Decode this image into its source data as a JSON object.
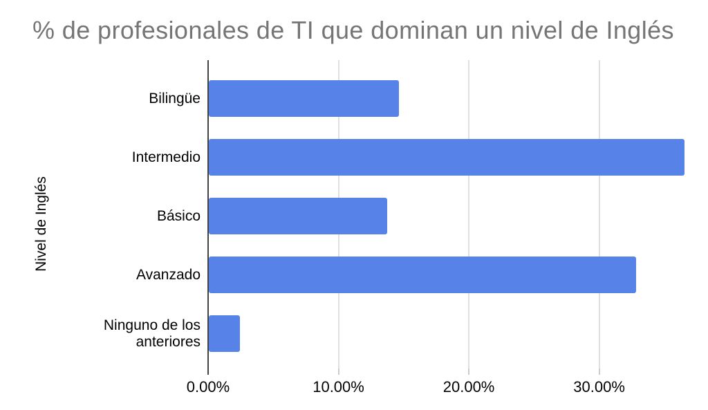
{
  "chart_data": {
    "type": "bar",
    "orientation": "horizontal",
    "title": "% de profesionales de TI que dominan un nivel de Inglés",
    "xlabel": "",
    "ylabel": "Nivel de Inglés",
    "categories": [
      "Bilingüe",
      "Intermedio",
      "Básico",
      "Avanzado",
      "Ninguno de los anteriores"
    ],
    "values": [
      14.6,
      36.5,
      13.7,
      32.8,
      2.4
    ],
    "value_unit": "%",
    "xlim": [
      0,
      37.5
    ],
    "x_ticks": [
      0,
      10,
      20,
      30
    ],
    "x_tick_labels": [
      "0.00%",
      "10.00%",
      "20.00%",
      "30.00%"
    ],
    "grid": true,
    "legend": "none",
    "colors": {
      "bar": "#5783e8",
      "title_text": "#757575",
      "axis_text": "#000000",
      "gridline": "#e0e0e0",
      "axis_line": "#424242",
      "minor_tick": "#cccccc",
      "background": "#ffffff"
    }
  }
}
